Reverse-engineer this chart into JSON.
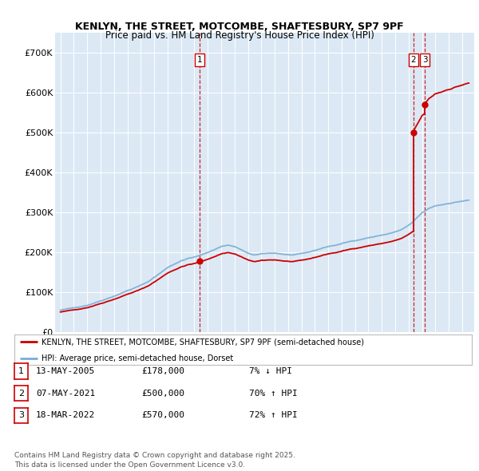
{
  "title": "KENLYN, THE STREET, MOTCOMBE, SHAFTESBURY, SP7 9PF",
  "subtitle": "Price paid vs. HM Land Registry's House Price Index (HPI)",
  "plot_bg_color": "#dce9f5",
  "ylim": [
    0,
    750000
  ],
  "yticks": [
    0,
    100000,
    200000,
    300000,
    400000,
    500000,
    600000,
    700000
  ],
  "ytick_labels": [
    "£0",
    "£100K",
    "£200K",
    "£300K",
    "£400K",
    "£500K",
    "£600K",
    "£700K"
  ],
  "sale_prices": [
    178000,
    500000,
    570000
  ],
  "sale_labels": [
    "1",
    "2",
    "3"
  ],
  "sale_decimal": [
    2005.37,
    2021.35,
    2022.21
  ],
  "legend_label_red": "KENLYN, THE STREET, MOTCOMBE, SHAFTESBURY, SP7 9PF (semi-detached house)",
  "legend_label_blue": "HPI: Average price, semi-detached house, Dorset",
  "table_entries": [
    {
      "num": "1",
      "date": "13-MAY-2005",
      "price": "£178,000",
      "hpi": "7% ↓ HPI"
    },
    {
      "num": "2",
      "date": "07-MAY-2021",
      "price": "£500,000",
      "hpi": "70% ↑ HPI"
    },
    {
      "num": "3",
      "date": "18-MAR-2022",
      "price": "£570,000",
      "hpi": "72% ↑ HPI"
    }
  ],
  "footer": "Contains HM Land Registry data © Crown copyright and database right 2025.\nThis data is licensed under the Open Government Licence v3.0.",
  "red_line_color": "#cc0000",
  "blue_line_color": "#7aadd4",
  "xlim_left": 1994.6,
  "xlim_right": 2025.9
}
